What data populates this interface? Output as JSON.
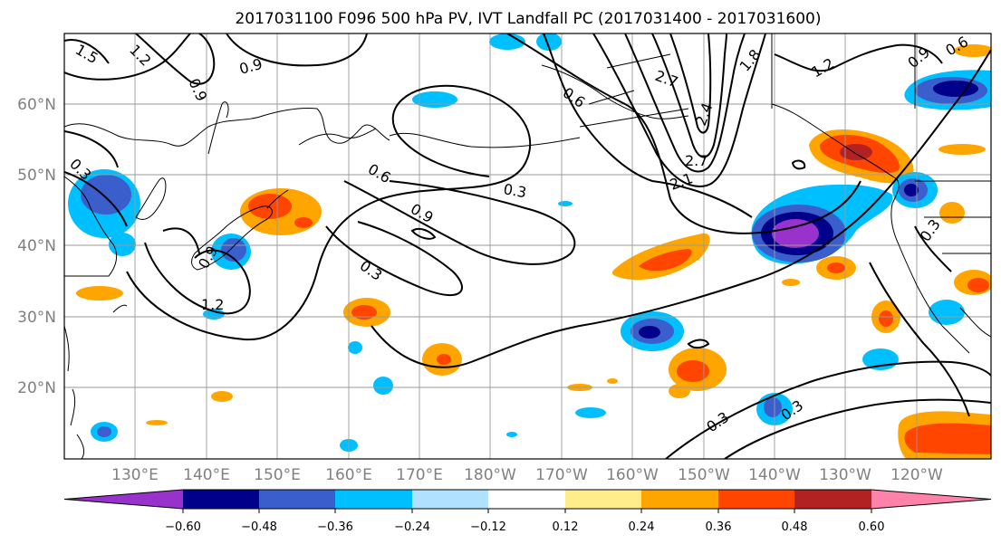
{
  "title": "2017031100 F096 500 hPa PV, IVT Landfall PC (2017031400 - 2017031600)",
  "map": {
    "lat_labels": [
      "60°N",
      "50°N",
      "40°N",
      "30°N",
      "20°N"
    ],
    "lon_labels": [
      "130°E",
      "140°E",
      "150°E",
      "160°E",
      "170°E",
      "180°W",
      "170°W",
      "160°W",
      "150°W",
      "140°W",
      "130°W",
      "120°W"
    ],
    "contour_labels": [
      "1.5",
      "1.2",
      "0.9",
      "0.9",
      "0.6",
      "2.7",
      "1.8",
      "1.2",
      "0.9",
      "0.3",
      "0.6",
      "0.3",
      "0.9",
      "0.3",
      "0.9",
      "1.2",
      "2.7",
      "2.4",
      "2.1",
      "0.3",
      "0.3",
      "0.3",
      "0.6"
    ]
  },
  "colorbar": {
    "tick_labels": [
      "−0.60",
      "−0.48",
      "−0.36",
      "−0.24",
      "−0.12",
      "0.12",
      "0.24",
      "0.36",
      "0.48",
      "0.60"
    ],
    "colors": [
      "#9932cc",
      "#00008b",
      "#3a5fcd",
      "#00bfff",
      "#b0e2ff",
      "#ffffff",
      "#ffec8b",
      "#ffa500",
      "#ff4500",
      "#b22222",
      "#ff82ab"
    ]
  }
}
